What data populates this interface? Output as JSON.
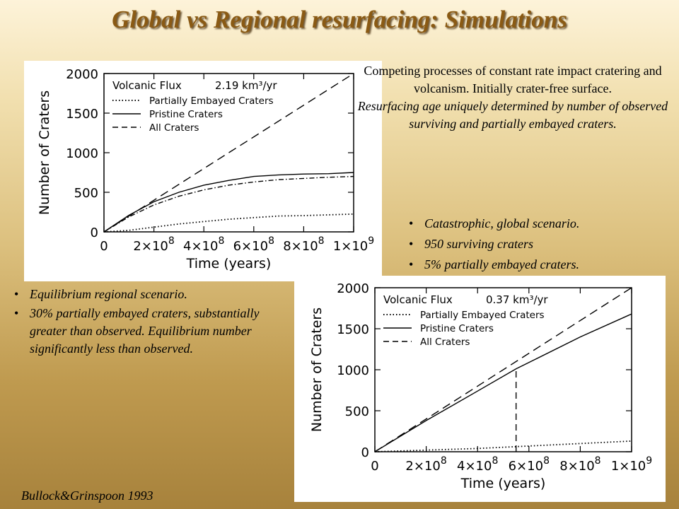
{
  "title": "Global vs Regional resurfacing: Simulations",
  "description": {
    "plain": "Competing processes of constant rate impact cratering and volcanism. Initially crater-free surface.",
    "italic": "Resurfacing age uniquely determined by number of observed surviving and partially embayed craters."
  },
  "global_bullets": [
    "Catastrophic, global scenario.",
    "950 surviving craters",
    "5% partially embayed craters."
  ],
  "regional_bullets": [
    "Equilibrium  regional scenario.",
    "30% partially embayed craters, substantially greater than observed. Equilibrium number significantly less than observed."
  ],
  "citation": "Bullock&Grinspoon 1993",
  "chart_data": [
    {
      "type": "line",
      "title": "",
      "annotation_label": "Volcanic Flux",
      "annotation_value": "2.19 km³/yr",
      "xlabel": "Time (years)",
      "ylabel": "Number of Craters",
      "xlim": [
        0,
        1000000000
      ],
      "ylim": [
        0,
        2000
      ],
      "y_ticks": [
        "0",
        "500",
        "1000",
        "1500",
        "2000"
      ],
      "x_ticks": [
        {
          "base": "0",
          "exp": ""
        },
        {
          "base": "2×10",
          "exp": "8"
        },
        {
          "base": "4×10",
          "exp": "8"
        },
        {
          "base": "6×10",
          "exp": "8"
        },
        {
          "base": "8×10",
          "exp": "8"
        },
        {
          "base": "1×10",
          "exp": "9"
        }
      ],
      "legend_position": "top-left",
      "grid": false,
      "series": [
        {
          "name": "Partially Embayed Craters",
          "style": "dotted",
          "points": [
            [
              0,
              0
            ],
            [
              100000000,
              20
            ],
            [
              200000000,
              60
            ],
            [
              300000000,
              100
            ],
            [
              400000000,
              130
            ],
            [
              500000000,
              160
            ],
            [
              600000000,
              180
            ],
            [
              700000000,
              200
            ],
            [
              800000000,
              205
            ],
            [
              900000000,
              215
            ],
            [
              1000000000,
              225
            ]
          ]
        },
        {
          "name": "Pristine Craters",
          "style": "solid",
          "points": [
            [
              0,
              0
            ],
            [
              100000000,
              210
            ],
            [
              200000000,
              380
            ],
            [
              300000000,
              500
            ],
            [
              400000000,
              590
            ],
            [
              500000000,
              650
            ],
            [
              600000000,
              700
            ],
            [
              700000000,
              720
            ],
            [
              800000000,
              730
            ],
            [
              900000000,
              735
            ],
            [
              1000000000,
              750
            ]
          ]
        },
        {
          "name": "All Craters",
          "style": "dashed",
          "points": [
            [
              0,
              0
            ],
            [
              1000000000,
              2000
            ]
          ]
        },
        {
          "name": "",
          "style": "dashdot",
          "points": [
            [
              0,
              0
            ],
            [
              100000000,
              190
            ],
            [
              200000000,
              340
            ],
            [
              300000000,
              450
            ],
            [
              400000000,
              530
            ],
            [
              500000000,
              590
            ],
            [
              600000000,
              630
            ],
            [
              700000000,
              660
            ],
            [
              800000000,
              675
            ],
            [
              900000000,
              690
            ],
            [
              1000000000,
              700
            ]
          ]
        }
      ]
    },
    {
      "type": "line",
      "title": "",
      "annotation_label": "Volcanic Flux",
      "annotation_value": "0.37 km³/yr",
      "xlabel": "Time (years)",
      "ylabel": "Number of Craters",
      "xlim": [
        0,
        1000000000
      ],
      "ylim": [
        0,
        2000
      ],
      "y_ticks": [
        "0",
        "500",
        "1000",
        "1500",
        "2000"
      ],
      "x_ticks": [
        {
          "base": "0",
          "exp": ""
        },
        {
          "base": "2×10",
          "exp": "8"
        },
        {
          "base": "4×10",
          "exp": "8"
        },
        {
          "base": "6×10",
          "exp": "8"
        },
        {
          "base": "8×10",
          "exp": "8"
        },
        {
          "base": "1×10",
          "exp": "9"
        }
      ],
      "legend_position": "top-left",
      "grid": false,
      "marker_x": 550000000,
      "series": [
        {
          "name": "Partially Embayed Craters",
          "style": "dotted",
          "points": [
            [
              0,
              0
            ],
            [
              200000000,
              20
            ],
            [
              400000000,
              40
            ],
            [
              600000000,
              70
            ],
            [
              800000000,
              100
            ],
            [
              1000000000,
              130
            ]
          ]
        },
        {
          "name": "Pristine Craters",
          "style": "solid",
          "points": [
            [
              0,
              0
            ],
            [
              200000000,
              380
            ],
            [
              400000000,
              740
            ],
            [
              550000000,
              1010
            ],
            [
              800000000,
              1400
            ],
            [
              1000000000,
              1680
            ]
          ]
        },
        {
          "name": "All Craters",
          "style": "dashed",
          "points": [
            [
              0,
              0
            ],
            [
              1000000000,
              2000
            ]
          ]
        }
      ]
    }
  ]
}
